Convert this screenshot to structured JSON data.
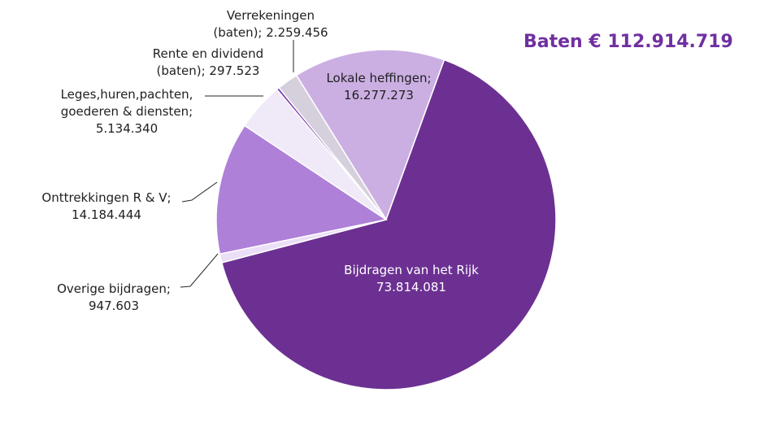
{
  "title": {
    "text": "Baten € 112.914.719",
    "color": "#7030A0"
  },
  "chart_data": {
    "type": "pie",
    "title": "Baten € 112.914.719",
    "total_label": "112.914.719",
    "start_angle_deg": -31.9,
    "direction": "clockwise",
    "legend_position": "none",
    "slices": [
      {
        "id": "lokale-heffingen",
        "label": "Lokale heffingen",
        "value": 16277273,
        "display_value": "16.277.273",
        "color": "#CBAFE3"
      },
      {
        "id": "bijdragen-van-het-rijk",
        "label": "Bijdragen van het Rijk",
        "value": 73814081,
        "display_value": "73.814.081",
        "color": "#6C3092"
      },
      {
        "id": "overige-bijdragen",
        "label": "Overige bijdragen",
        "value": 947603,
        "display_value": "947.603",
        "color": "#EADFF6"
      },
      {
        "id": "onttrekkingen-r-v",
        "label": "Onttrekkingen R & V",
        "value": 14184444,
        "display_value": "14.184.444",
        "color": "#AE80D8"
      },
      {
        "id": "leges-huren-pachten",
        "label": "Leges,huren,pachten, goederen & diensten",
        "value": 5134340,
        "display_value": "5.134.340",
        "color": "#F0E9F7"
      },
      {
        "id": "rente-en-dividend",
        "label": "Rente en dividend (baten)",
        "value": 297523,
        "display_value": "297.523",
        "color": "#7B3CAB"
      },
      {
        "id": "verrekeningen",
        "label": "Verrekeningen (baten)",
        "value": 2259456,
        "display_value": "2.259.456",
        "color": "#D6D0DC"
      }
    ]
  },
  "labels": {
    "verrekeningen": {
      "line1": "Verrekeningen",
      "line2": "(baten);  2.259.456"
    },
    "rente": {
      "line1": "Rente en dividend",
      "line2": "(baten);  297.523"
    },
    "leges": {
      "line1": "Leges,huren,pachten,",
      "line2": "goederen & diensten;",
      "line3": "5.134.340"
    },
    "onttrekkingen": {
      "line1": "Onttrekkingen R & V;",
      "line2": "14.184.444"
    },
    "overige": {
      "line1": "Overige bijdragen;",
      "line2": "947.603"
    },
    "lokale": {
      "line1": "Lokale heffingen;",
      "line2": "16.277.273"
    },
    "bijdragen": {
      "line1": "Bijdragen van het Rijk",
      "line2": "73.814.081"
    }
  }
}
